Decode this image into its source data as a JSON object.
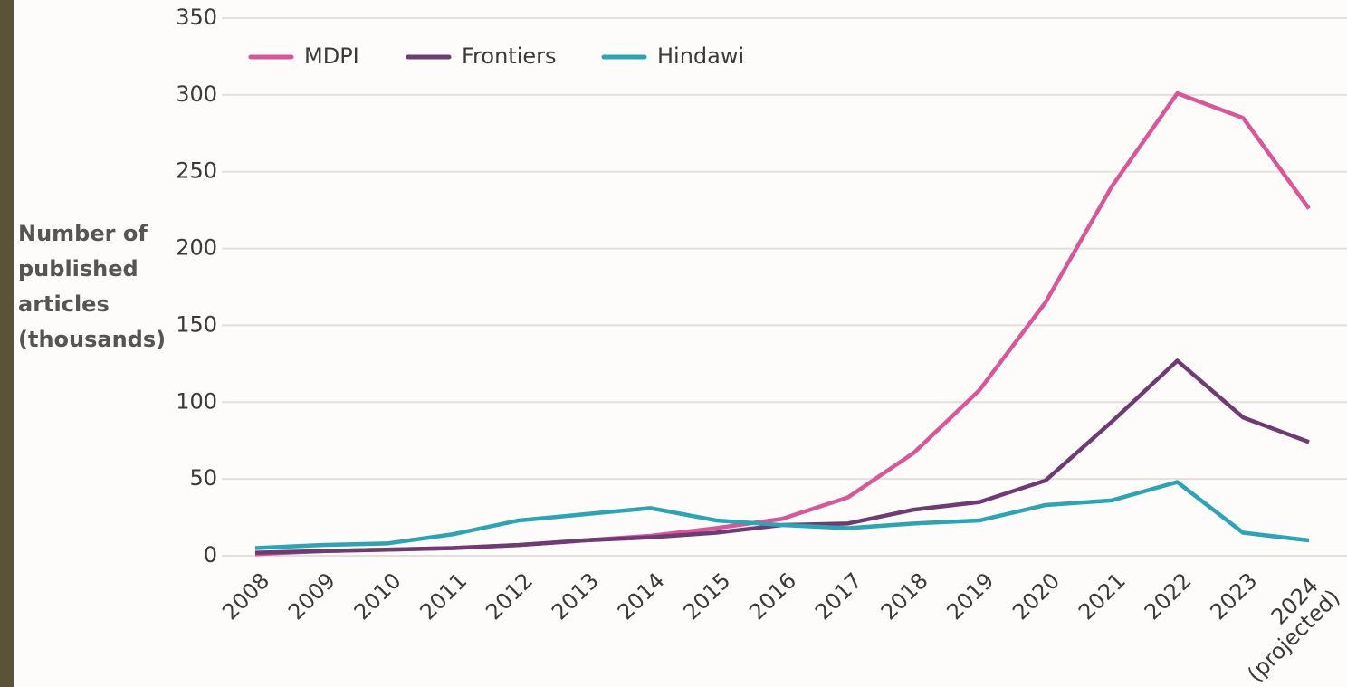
{
  "chart_data": {
    "type": "line",
    "ylabel": [
      "Number of",
      "published",
      "articles",
      "(thousands)"
    ],
    "categories": [
      "2008",
      "2009",
      "2010",
      "2011",
      "2012",
      "2013",
      "2014",
      "2015",
      "2016",
      "2017",
      "2018",
      "2019",
      "2020",
      "2021",
      "2022",
      "2023",
      "2024 (projected)"
    ],
    "series": [
      {
        "name": "MDPI",
        "color": "#d6579a",
        "values": [
          1,
          3,
          4,
          5,
          7,
          10,
          13,
          18,
          24,
          38,
          67,
          108,
          165,
          240,
          301,
          285,
          226
        ]
      },
      {
        "name": "Frontiers",
        "color": "#6e3b73",
        "values": [
          2,
          3,
          4,
          5,
          7,
          10,
          12,
          15,
          20,
          21,
          30,
          35,
          49,
          87,
          127,
          90,
          74
        ]
      },
      {
        "name": "Hindawi",
        "color": "#2ea3b4",
        "values": [
          5,
          7,
          8,
          14,
          23,
          27,
          31,
          23,
          20,
          18,
          21,
          23,
          33,
          36,
          48,
          15,
          10
        ]
      }
    ],
    "ylim": [
      0,
      350
    ],
    "yticks": [
      0,
      50,
      100,
      150,
      200,
      250,
      300,
      350
    ],
    "grid": true,
    "legend": "top-left"
  }
}
